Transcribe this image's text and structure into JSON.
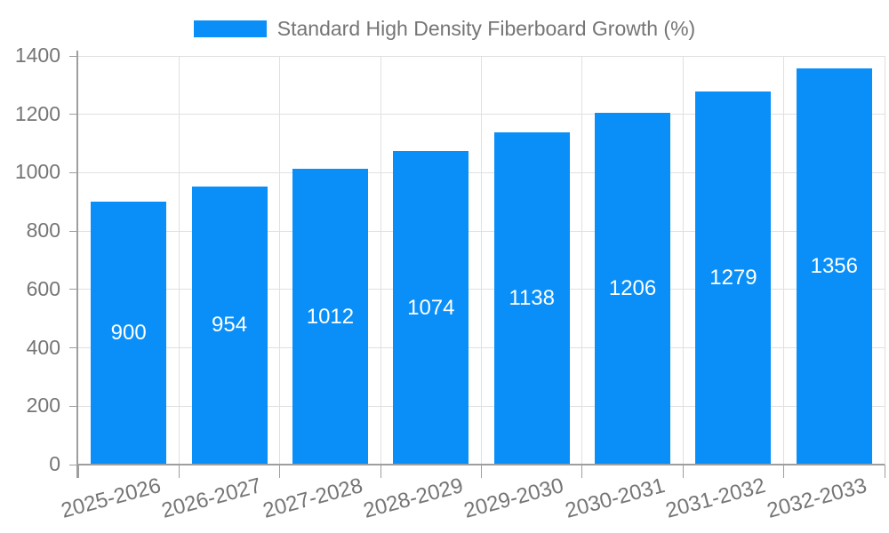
{
  "chart_data": {
    "type": "bar",
    "title": "Standard High Density Fiberboard Growth (%)",
    "categories": [
      "2025-2026",
      "2026-2027",
      "2027-2028",
      "2028-2029",
      "2029-2030",
      "2030-2031",
      "2031-2032",
      "2032-2033"
    ],
    "values": [
      900,
      954,
      1012,
      1074,
      1138,
      1206,
      1279,
      1356
    ],
    "series": [
      {
        "name": "Standard High Density Fiberboard Growth (%)",
        "values": [
          900,
          954,
          1012,
          1074,
          1138,
          1206,
          1279,
          1356
        ]
      }
    ],
    "xlabel": "",
    "ylabel": "",
    "ylim": [
      0,
      1400
    ],
    "yticks": [
      0,
      200,
      400,
      600,
      800,
      1000,
      1200,
      1400
    ],
    "legend_position": "top-center",
    "grid": true,
    "value_label_position": "inside-center",
    "x_tick_rotation_deg": -15,
    "colors": {
      "bar": "#0a8ff8",
      "value_label": "#ffffff",
      "axis": "#9e9e9e",
      "gridline": "#e0e0e0",
      "tick_text": "#757575",
      "legend_text": "#757575",
      "background": "#ffffff"
    }
  }
}
